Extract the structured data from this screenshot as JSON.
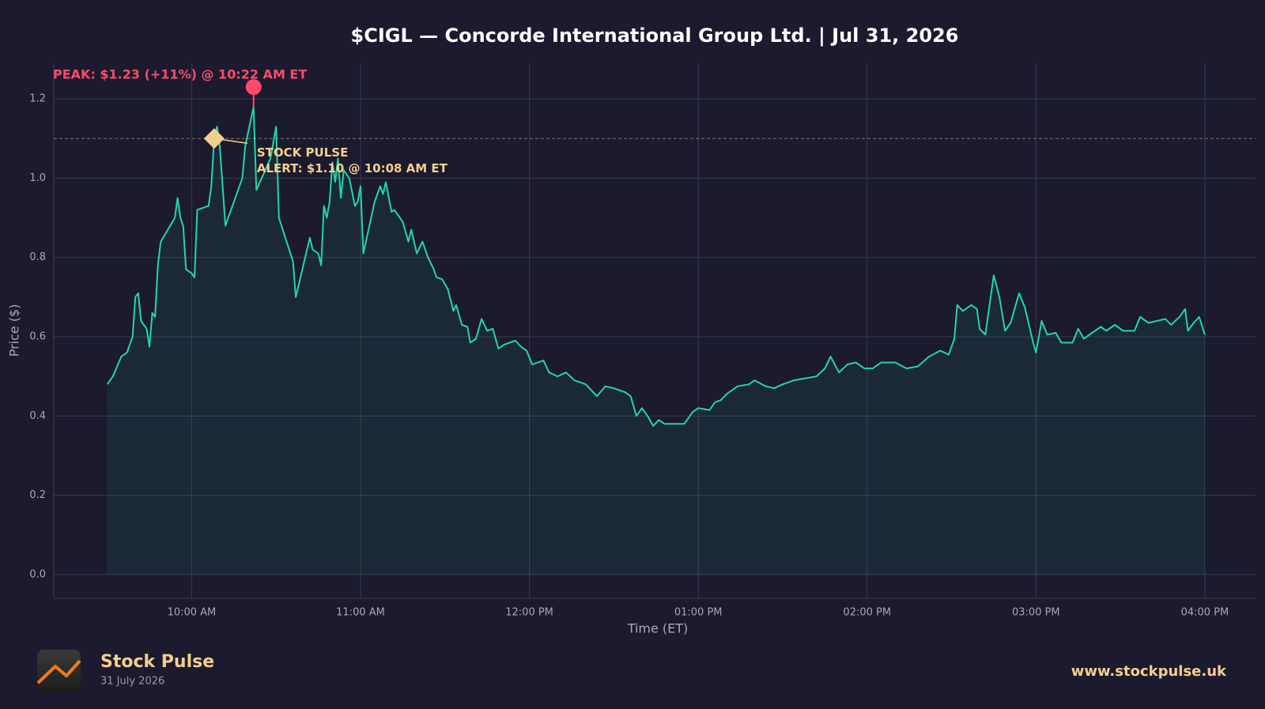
{
  "chart_data": {
    "type": "line",
    "title": "$CIGL — Concorde International Group Ltd.  |  Jul 31, 2026",
    "xlabel": "Time (ET)",
    "ylabel": "Price ($)",
    "color": "#22d6a9",
    "grid": true,
    "xlim": [
      "09:11",
      "16:18"
    ],
    "ylim": [
      -0.06,
      1.29
    ],
    "xticks": [
      {
        "value": "10:00",
        "label": "10:00 AM"
      },
      {
        "value": "11:00",
        "label": "11:00 AM"
      },
      {
        "value": "12:00",
        "label": "12:00 PM"
      },
      {
        "value": "13:00",
        "label": "01:00 PM"
      },
      {
        "value": "14:00",
        "label": "02:00 PM"
      },
      {
        "value": "15:00",
        "label": "03:00 PM"
      },
      {
        "value": "16:00",
        "label": "04:00 PM"
      }
    ],
    "yticks": [
      {
        "value": 0,
        "label": "0.0"
      },
      0.2,
      0.4,
      0.6,
      0.8,
      {
        "value": 1,
        "label": "1.0"
      },
      1.2
    ],
    "x": [
      "09:30",
      "09:32",
      "09:35",
      "09:37",
      "09:39",
      "09:40",
      "09:41",
      "09:42",
      "09:44",
      "09:45",
      "09:46",
      "09:47",
      "09:48",
      "09:49",
      "09:54",
      "09:55",
      "09:56",
      "09:57",
      "09:58",
      "10:00",
      "10:01",
      "10:02",
      "10:06",
      "10:07",
      "10:08",
      "10:09",
      "10:10",
      "10:12",
      "10:18",
      "10:19",
      "10:22",
      "10:23",
      "10:28",
      "10:30",
      "10:31",
      "10:36",
      "10:37",
      "10:42",
      "10:43",
      "10:45",
      "10:46",
      "10:47",
      "10:48",
      "10:49",
      "10:50",
      "10:51",
      "10:52",
      "10:53",
      "10:54",
      "10:56",
      "10:58",
      "10:59",
      "11:00",
      "11:01",
      "11:05",
      "11:07",
      "11:08",
      "11:09",
      "11:11",
      "11:12",
      "11:15",
      "11:17",
      "11:18",
      "11:20",
      "11:22",
      "11:24",
      "11:26",
      "11:27",
      "11:29",
      "11:31",
      "11:33",
      "11:34",
      "11:36",
      "11:38",
      "11:39",
      "11:41",
      "11:43",
      "11:45",
      "11:47",
      "11:49",
      "11:51",
      "11:53",
      "11:55",
      "11:57",
      "11:59",
      "12:01",
      "12:05",
      "12:07",
      "12:10",
      "12:13",
      "12:16",
      "12:20",
      "12:24",
      "12:27",
      "12:30",
      "12:34",
      "12:36",
      "12:38",
      "12:40",
      "12:42",
      "12:44",
      "12:46",
      "12:48",
      "12:55",
      "12:58",
      "13:00",
      "13:04",
      "13:06",
      "13:08",
      "13:10",
      "13:14",
      "13:18",
      "13:20",
      "13:24",
      "13:27",
      "13:30",
      "13:34",
      "13:38",
      "13:42",
      "13:45",
      "13:47",
      "13:50",
      "13:53",
      "13:56",
      "13:59",
      "14:02",
      "14:05",
      "14:10",
      "14:14",
      "14:18",
      "14:22",
      "14:26",
      "14:29",
      "14:31",
      "14:32",
      "14:34",
      "14:37",
      "14:39",
      "14:40",
      "14:42",
      "14:45",
      "14:47",
      "14:49",
      "14:51",
      "14:54",
      "14:56",
      "14:59",
      "15:00",
      "15:02",
      "15:04",
      "15:07",
      "15:09",
      "15:13",
      "15:15",
      "15:17",
      "15:20",
      "15:23",
      "15:25",
      "15:28",
      "15:31",
      "15:35",
      "15:37",
      "15:40",
      "15:43",
      "15:46",
      "15:48",
      "15:51",
      "15:53",
      "15:54",
      "15:56",
      "15:58",
      "16:00"
    ],
    "values": [
      0.48,
      0.5,
      0.55,
      0.56,
      0.6,
      0.7,
      0.71,
      0.64,
      0.62,
      0.575,
      0.66,
      0.65,
      0.78,
      0.84,
      0.9,
      0.95,
      0.9,
      0.88,
      0.77,
      0.76,
      0.75,
      0.92,
      0.93,
      0.98,
      1.1,
      1.13,
      1.08,
      0.88,
      1.0,
      1.08,
      1.18,
      0.97,
      1.05,
      1.13,
      0.9,
      0.79,
      0.7,
      0.85,
      0.82,
      0.81,
      0.78,
      0.93,
      0.9,
      0.94,
      1.04,
      0.99,
      1.05,
      0.95,
      1.02,
      1.0,
      0.93,
      0.94,
      0.98,
      0.81,
      0.94,
      0.98,
      0.96,
      0.99,
      0.915,
      0.92,
      0.89,
      0.84,
      0.87,
      0.81,
      0.84,
      0.8,
      0.77,
      0.75,
      0.745,
      0.72,
      0.665,
      0.68,
      0.63,
      0.625,
      0.585,
      0.595,
      0.645,
      0.615,
      0.62,
      0.57,
      0.58,
      0.585,
      0.59,
      0.575,
      0.565,
      0.53,
      0.54,
      0.51,
      0.5,
      0.51,
      0.49,
      0.48,
      0.45,
      0.475,
      0.47,
      0.46,
      0.45,
      0.4,
      0.42,
      0.4,
      0.375,
      0.39,
      0.38,
      0.38,
      0.41,
      0.42,
      0.415,
      0.435,
      0.44,
      0.455,
      0.475,
      0.48,
      0.49,
      0.475,
      0.47,
      0.48,
      0.49,
      0.495,
      0.5,
      0.52,
      0.55,
      0.51,
      0.53,
      0.535,
      0.52,
      0.52,
      0.535,
      0.535,
      0.52,
      0.525,
      0.55,
      0.565,
      0.555,
      0.595,
      0.68,
      0.665,
      0.68,
      0.67,
      0.62,
      0.605,
      0.755,
      0.7,
      0.615,
      0.635,
      0.71,
      0.675,
      0.585,
      0.56,
      0.64,
      0.605,
      0.61,
      0.585,
      0.585,
      0.62,
      0.595,
      0.61,
      0.625,
      0.615,
      0.63,
      0.615,
      0.615,
      0.65,
      0.635,
      0.64,
      0.645,
      0.63,
      0.65,
      0.67,
      0.615,
      0.635,
      0.65,
      0.605
    ],
    "peak": {
      "x": "10:22",
      "value": 1.23,
      "label": "PEAK: $1.23 (+11%) @ 10:22 AM ET",
      "color": "#ff4a68"
    },
    "alert": {
      "x": "10:08",
      "value": 1.1,
      "lines": [
        "STOCK PULSE",
        "ALERT: $1.10 @ 10:08 AM ET"
      ],
      "color": "#f3cf8c"
    }
  },
  "footer": {
    "brand": "Stock Pulse",
    "date": "31 July 2026",
    "url": "www.stockpulse.uk"
  }
}
